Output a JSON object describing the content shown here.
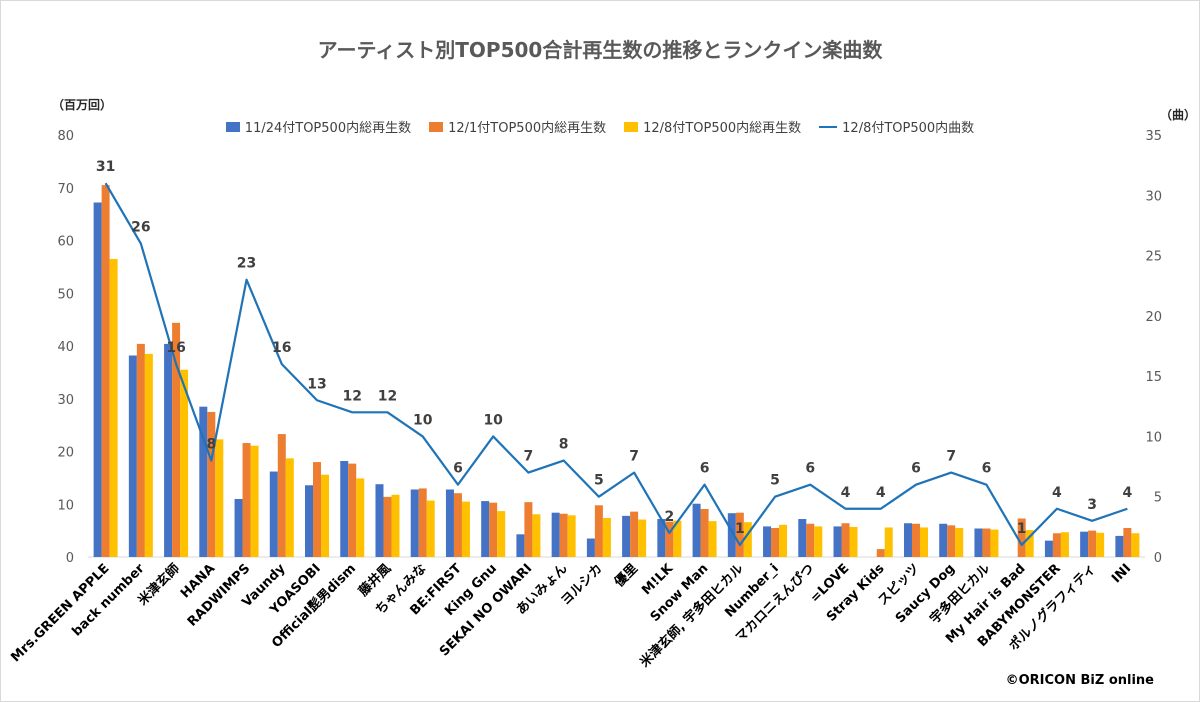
{
  "chart_data": {
    "type": "bar",
    "title": "アーティスト別TOP500合計再生数の推移とランクイン楽曲数",
    "y_left_label": "（百万回）",
    "y_right_label": "（曲）",
    "ylim_left": [
      0,
      80
    ],
    "ylim_right": [
      0,
      35
    ],
    "yticks_left": [
      "0",
      "10",
      "20",
      "30",
      "40",
      "50",
      "60",
      "70",
      "80"
    ],
    "yticks_right": [
      "0",
      "5",
      "10",
      "15",
      "20",
      "25",
      "30",
      "35"
    ],
    "grid": false,
    "legend_position": "top",
    "categories": [
      "Mrs.GREEN APPLE",
      "back number",
      "米津玄師",
      "HANA",
      "RADWIMPS",
      "Vaundy",
      "YOASOBI",
      "Official髭男dism",
      "藤井風",
      "ちゃんみな",
      "BE:FIRST",
      "King Gnu",
      "SEKAI NO OWARI",
      "あいみょん",
      "ヨルシカ",
      "優里",
      "M!LK",
      "Snow Man",
      "米津玄師, 宇多田ヒカル",
      "Number_i",
      "マカロニえんぴつ",
      "=LOVE",
      "Stray Kids",
      "スピッツ",
      "Saucy Dog",
      "宇多田ヒカル",
      "My Hair is Bad",
      "BABYMONSTER",
      "ポルノグラフィティ",
      "INI"
    ],
    "series": [
      {
        "name": "11/24付TOP500内総再生数",
        "color": "#4472c4",
        "type": "bar",
        "values": [
          67.2,
          38.2,
          40.4,
          28.5,
          11.0,
          16.2,
          13.6,
          18.2,
          13.8,
          12.8,
          12.8,
          10.6,
          4.3,
          8.4,
          3.5,
          7.8,
          7.2,
          10.1,
          8.3,
          5.8,
          7.2,
          5.8,
          0,
          6.4,
          6.3,
          5.4,
          0,
          3.1,
          4.8,
          4.0
        ]
      },
      {
        "name": "12/1付TOP500内総再生数",
        "color": "#ed7d31",
        "type": "bar",
        "values": [
          70.5,
          40.4,
          44.4,
          27.5,
          21.6,
          23.3,
          18.0,
          17.7,
          11.4,
          13.0,
          12.1,
          10.3,
          10.4,
          8.2,
          9.8,
          8.6,
          6.7,
          9.1,
          8.4,
          5.5,
          6.3,
          6.4,
          1.5,
          6.3,
          6.0,
          5.4,
          7.3,
          4.5,
          5.0,
          5.5
        ]
      },
      {
        "name": "12/8付TOP500内総再生数",
        "color": "#ffc000",
        "type": "bar",
        "values": [
          56.5,
          38.5,
          35.5,
          22.3,
          21.1,
          18.7,
          15.6,
          14.9,
          11.8,
          10.7,
          10.5,
          8.7,
          8.1,
          7.9,
          7.4,
          7.1,
          6.9,
          6.8,
          6.6,
          6.1,
          5.8,
          5.7,
          5.6,
          5.6,
          5.5,
          5.2,
          5.1,
          4.7,
          4.6,
          4.5
        ]
      },
      {
        "name": "12/8付TOP500内曲数",
        "color": "#1f73b7",
        "type": "line",
        "axis": "right",
        "values": [
          31,
          26,
          16,
          8,
          23,
          16,
          13,
          12,
          12,
          10,
          6,
          10,
          7,
          8,
          5,
          7,
          2,
          6,
          1,
          5,
          6,
          4,
          4,
          6,
          7,
          6,
          1,
          4,
          3,
          4
        ]
      }
    ]
  },
  "credit": "©ORICON BiZ online"
}
